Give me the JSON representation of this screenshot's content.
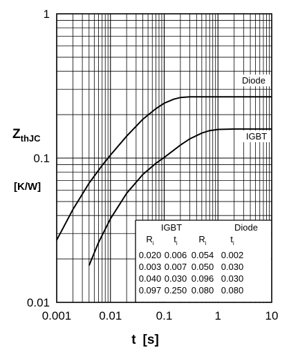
{
  "chart_data": {
    "type": "line",
    "x_scale": "log",
    "y_scale": "log",
    "xlim": [
      0.001,
      10
    ],
    "ylim": [
      0.01,
      1
    ],
    "grid": true,
    "xlabel_main": "t",
    "xlabel_unit": "[s]",
    "ylabel_main": "Z",
    "ylabel_sub": "thJC",
    "ylabel_unit": "[K/W]",
    "x_ticks": [
      {
        "value": 0.001,
        "label": "0.001"
      },
      {
        "value": 0.01,
        "label": "0.01"
      },
      {
        "value": 0.1,
        "label": "0.1"
      },
      {
        "value": 1,
        "label": "1"
      },
      {
        "value": 10,
        "label": "10"
      }
    ],
    "y_ticks": [
      {
        "value": 0.01,
        "label": "0.01"
      },
      {
        "value": 0.1,
        "label": "0.1"
      },
      {
        "value": 1,
        "label": "1"
      }
    ],
    "series": [
      {
        "name": "Diode",
        "x": [
          0.001,
          0.002,
          0.004,
          0.007,
          0.01,
          0.02,
          0.04,
          0.07,
          0.1,
          0.15,
          0.2,
          0.3,
          0.5,
          1,
          2,
          5,
          10
        ],
        "y": [
          0.027,
          0.044,
          0.067,
          0.089,
          0.105,
          0.142,
          0.186,
          0.22,
          0.24,
          0.256,
          0.263,
          0.266,
          0.266,
          0.266,
          0.266,
          0.266,
          0.266
        ]
      },
      {
        "name": "IGBT",
        "x": [
          0.004,
          0.006,
          0.01,
          0.02,
          0.04,
          0.07,
          0.1,
          0.2,
          0.3,
          0.5,
          0.7,
          1,
          2,
          5,
          10
        ],
        "y": [
          0.018,
          0.026,
          0.038,
          0.057,
          0.077,
          0.092,
          0.101,
          0.123,
          0.136,
          0.149,
          0.155,
          0.158,
          0.159,
          0.159,
          0.159
        ]
      }
    ],
    "table": {
      "group_headers": [
        "IGBT",
        "Diode"
      ],
      "columns": [
        "R",
        "t",
        "R",
        "t"
      ],
      "column_subscript": "i",
      "rows": [
        [
          "0.020",
          "0.006",
          "0.054",
          "0.002"
        ],
        [
          "0.003",
          "0.007",
          "0.050",
          "0.030"
        ],
        [
          "0.040",
          "0.030",
          "0.096",
          "0.030"
        ],
        [
          "0.097",
          "0.250",
          "0.080",
          "0.080"
        ]
      ]
    }
  }
}
